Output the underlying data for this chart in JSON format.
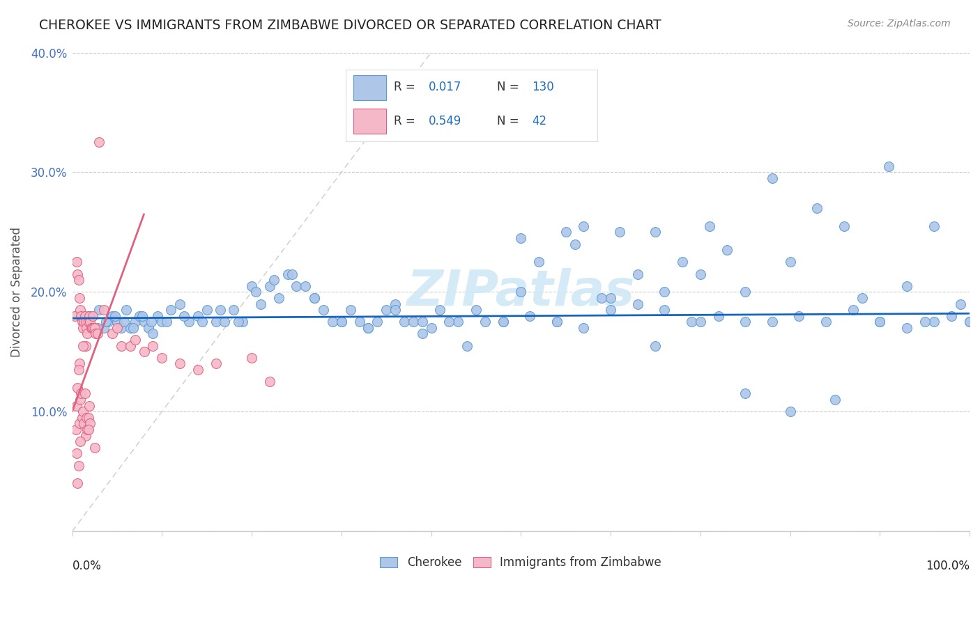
{
  "title": "CHEROKEE VS IMMIGRANTS FROM ZIMBABWE DIVORCED OR SEPARATED CORRELATION CHART",
  "source": "Source: ZipAtlas.com",
  "ylabel": "Divorced or Separated",
  "legend_label1": "Cherokee",
  "legend_label2": "Immigrants from Zimbabwe",
  "R1": "0.017",
  "N1": "130",
  "R2": "0.549",
  "N2": "42",
  "xlim": [
    0,
    100
  ],
  "ylim": [
    0,
    40
  ],
  "ytick_positions": [
    0,
    10,
    20,
    30,
    40
  ],
  "ytick_labels": [
    "",
    "10.0%",
    "20.0%",
    "30.0%",
    "40.0%"
  ],
  "blue_color": "#aec6e8",
  "blue_border": "#5b9bd5",
  "pink_color": "#f4b8c8",
  "pink_border": "#e06080",
  "trend_blue_color": "#1565c0",
  "trend_pink_color": "#e06080",
  "watermark_color": "#d0e8f5",
  "grid_color": "#cccccc",
  "title_color": "#222222",
  "source_color": "#888888",
  "axis_label_color": "#4472c4",
  "ylabel_color": "#555555",
  "legend_text_color": "#1f6fbf",
  "blue_x": [
    1.5,
    2.0,
    2.5,
    3.0,
    3.5,
    4.0,
    4.5,
    5.0,
    5.5,
    6.0,
    6.5,
    7.0,
    7.5,
    8.0,
    8.5,
    9.0,
    9.5,
    10.0,
    11.0,
    12.0,
    13.0,
    14.0,
    15.0,
    16.0,
    17.0,
    18.0,
    19.0,
    20.0,
    21.0,
    22.0,
    23.0,
    24.0,
    25.0,
    26.0,
    27.0,
    28.0,
    29.0,
    30.0,
    31.0,
    32.0,
    33.0,
    34.0,
    35.0,
    36.0,
    37.0,
    38.0,
    39.0,
    40.0,
    41.0,
    43.0,
    44.0,
    46.0,
    48.0,
    50.0,
    52.0,
    54.0,
    56.0,
    57.0,
    59.0,
    61.0,
    63.0,
    65.0,
    66.0,
    68.0,
    70.0,
    71.0,
    73.0,
    75.0,
    78.0,
    80.0,
    83.0,
    86.0,
    88.0,
    91.0,
    93.0,
    96.0,
    98.0,
    100.0,
    1.8,
    2.8,
    3.8,
    4.8,
    5.8,
    6.8,
    7.8,
    8.8,
    10.5,
    12.5,
    14.5,
    16.5,
    18.5,
    20.5,
    22.5,
    24.5,
    27.0,
    30.0,
    33.0,
    36.0,
    39.0,
    42.0,
    45.0,
    48.0,
    51.0,
    54.0,
    57.0,
    60.0,
    63.0,
    66.0,
    69.0,
    72.0,
    75.0,
    78.0,
    81.0,
    84.0,
    87.0,
    90.0,
    93.0,
    96.0,
    99.0,
    50.0,
    55.0,
    60.0,
    65.0,
    70.0,
    75.0,
    80.0,
    85.0,
    90.0,
    95.0,
    100.0
  ],
  "blue_y": [
    17.5,
    18.0,
    17.0,
    18.5,
    17.0,
    17.5,
    18.0,
    17.5,
    17.0,
    18.5,
    17.0,
    17.5,
    18.0,
    17.5,
    17.0,
    16.5,
    18.0,
    17.5,
    18.5,
    19.0,
    17.5,
    18.0,
    18.5,
    17.5,
    17.5,
    18.5,
    17.5,
    20.5,
    19.0,
    20.5,
    19.5,
    21.5,
    20.5,
    20.5,
    19.5,
    18.5,
    17.5,
    17.5,
    18.5,
    17.5,
    17.0,
    17.5,
    18.5,
    19.0,
    17.5,
    17.5,
    16.5,
    17.0,
    18.5,
    17.5,
    15.5,
    17.5,
    17.5,
    24.5,
    22.5,
    17.5,
    24.0,
    25.5,
    19.5,
    25.0,
    21.5,
    25.0,
    20.0,
    22.5,
    21.5,
    25.5,
    23.5,
    20.0,
    29.5,
    22.5,
    27.0,
    25.5,
    19.5,
    30.5,
    20.5,
    17.5,
    18.0,
    17.5,
    18.0,
    17.0,
    17.5,
    18.0,
    17.5,
    17.0,
    18.0,
    17.5,
    17.5,
    18.0,
    17.5,
    18.5,
    17.5,
    20.0,
    21.0,
    21.5,
    19.5,
    17.5,
    17.0,
    18.5,
    17.5,
    17.5,
    18.5,
    17.5,
    18.0,
    17.5,
    17.0,
    18.5,
    19.0,
    18.5,
    17.5,
    18.0,
    17.5,
    17.5,
    18.0,
    17.5,
    18.5,
    17.5,
    17.0,
    25.5,
    19.0,
    20.0,
    25.0,
    19.5,
    15.5,
    17.5,
    11.5,
    10.0,
    11.0,
    17.5,
    17.5,
    17.5
  ],
  "pink_x": [
    0.3,
    0.5,
    0.6,
    0.7,
    0.8,
    0.9,
    1.0,
    1.1,
    1.2,
    1.3,
    1.4,
    1.5,
    1.6,
    1.7,
    1.8,
    1.9,
    2.0,
    2.1,
    2.2,
    2.3,
    2.4,
    2.5,
    2.6,
    2.8,
    3.0,
    3.5,
    4.5,
    5.0,
    5.5,
    6.5,
    7.0,
    8.0,
    9.0,
    10.0,
    12.0,
    14.0,
    16.0,
    20.0,
    22.0,
    1.5,
    0.8,
    1.2
  ],
  "pink_y": [
    18.0,
    22.5,
    21.5,
    21.0,
    19.5,
    18.5,
    18.0,
    17.5,
    17.0,
    17.5,
    18.0,
    17.5,
    17.0,
    16.5,
    17.5,
    18.0,
    17.5,
    17.0,
    17.0,
    18.0,
    17.0,
    17.0,
    16.5,
    16.5,
    32.5,
    18.5,
    16.5,
    17.0,
    15.5,
    15.5,
    16.0,
    15.0,
    15.5,
    14.5,
    14.0,
    13.5,
    14.0,
    14.5,
    12.5,
    15.5,
    14.0,
    15.5
  ],
  "extra_pink_x": [
    0.4,
    0.5,
    0.6,
    0.7,
    0.8,
    0.9,
    1.0,
    1.1,
    1.2,
    1.3,
    1.4,
    1.5,
    1.6,
    1.7,
    1.8,
    1.9,
    2.0,
    0.5,
    0.7,
    0.9,
    0.6,
    1.8,
    2.5
  ],
  "extra_pink_y": [
    8.5,
    10.5,
    12.0,
    13.5,
    9.0,
    11.0,
    11.5,
    9.5,
    10.0,
    9.0,
    11.5,
    8.0,
    9.5,
    8.5,
    9.5,
    10.5,
    9.0,
    6.5,
    5.5,
    7.5,
    4.0,
    8.5,
    7.0
  ]
}
